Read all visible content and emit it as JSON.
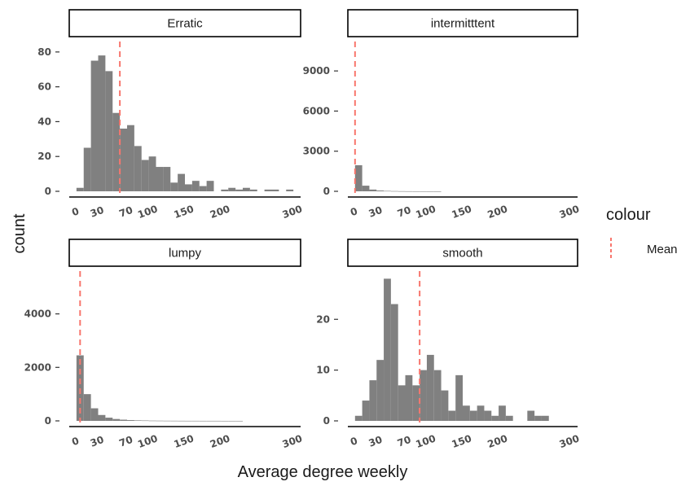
{
  "chart_data": {
    "type": "histogram",
    "xlabel": "Average degree weekly",
    "ylabel": "count",
    "x_tick_labels": [
      "0",
      "30",
      "70",
      "100",
      "150",
      "200",
      "300"
    ],
    "x_tick_values": [
      0,
      30,
      70,
      100,
      150,
      200,
      300
    ],
    "xlim": [
      -10,
      310
    ],
    "bin_width": 10,
    "legend": {
      "title": "colour",
      "entries": [
        {
          "label": "Mean",
          "color": "#f8766d",
          "style": "dashed"
        }
      ]
    },
    "bar_color": "#808080",
    "panels": [
      {
        "strip": "Erratic",
        "ylim": [
          0,
          86
        ],
        "y_ticks": [
          0,
          20,
          40,
          60,
          80
        ],
        "y_tick_labels": [
          "0",
          "20",
          "40",
          "60",
          "80"
        ],
        "mean": 60,
        "bins": [
          {
            "x": 0,
            "count": 2
          },
          {
            "x": 10,
            "count": 25
          },
          {
            "x": 20,
            "count": 75
          },
          {
            "x": 30,
            "count": 78
          },
          {
            "x": 40,
            "count": 69
          },
          {
            "x": 50,
            "count": 45
          },
          {
            "x": 60,
            "count": 36
          },
          {
            "x": 70,
            "count": 38
          },
          {
            "x": 80,
            "count": 26
          },
          {
            "x": 90,
            "count": 18
          },
          {
            "x": 100,
            "count": 20
          },
          {
            "x": 110,
            "count": 14
          },
          {
            "x": 120,
            "count": 14
          },
          {
            "x": 130,
            "count": 5
          },
          {
            "x": 140,
            "count": 10
          },
          {
            "x": 150,
            "count": 4
          },
          {
            "x": 160,
            "count": 6
          },
          {
            "x": 170,
            "count": 3
          },
          {
            "x": 180,
            "count": 6
          },
          {
            "x": 190,
            "count": 0
          },
          {
            "x": 200,
            "count": 1
          },
          {
            "x": 210,
            "count": 2
          },
          {
            "x": 220,
            "count": 1
          },
          {
            "x": 230,
            "count": 2
          },
          {
            "x": 240,
            "count": 1
          },
          {
            "x": 250,
            "count": 0
          },
          {
            "x": 260,
            "count": 1
          },
          {
            "x": 270,
            "count": 1
          },
          {
            "x": 280,
            "count": 0
          },
          {
            "x": 290,
            "count": 1
          }
        ]
      },
      {
        "strip": "intermitttent",
        "ylim": [
          0,
          11200
        ],
        "y_ticks": [
          0,
          3000,
          6000,
          9000
        ],
        "y_tick_labels": [
          "0",
          "3000",
          "6000",
          "9000"
        ],
        "mean": 0,
        "bins": [
          {
            "x": 0,
            "count": 1950
          },
          {
            "x": 10,
            "count": 420
          },
          {
            "x": 20,
            "count": 130
          },
          {
            "x": 30,
            "count": 60
          },
          {
            "x": 40,
            "count": 30
          },
          {
            "x": 50,
            "count": 18
          },
          {
            "x": 60,
            "count": 10
          },
          {
            "x": 70,
            "count": 6
          },
          {
            "x": 80,
            "count": 4
          },
          {
            "x": 90,
            "count": 3
          },
          {
            "x": 100,
            "count": 2
          },
          {
            "x": 110,
            "count": 1
          }
        ]
      },
      {
        "strip": "lumpy",
        "ylim": [
          0,
          5600
        ],
        "y_ticks": [
          0,
          2000,
          4000
        ],
        "y_tick_labels": [
          "0",
          "2000",
          "4000"
        ],
        "mean": 5,
        "bins": [
          {
            "x": 0,
            "count": 2450
          },
          {
            "x": 10,
            "count": 1000
          },
          {
            "x": 20,
            "count": 470
          },
          {
            "x": 30,
            "count": 220
          },
          {
            "x": 40,
            "count": 120
          },
          {
            "x": 50,
            "count": 70
          },
          {
            "x": 60,
            "count": 45
          },
          {
            "x": 70,
            "count": 30
          },
          {
            "x": 80,
            "count": 20
          },
          {
            "x": 90,
            "count": 15
          },
          {
            "x": 100,
            "count": 10
          },
          {
            "x": 110,
            "count": 8
          },
          {
            "x": 120,
            "count": 6
          },
          {
            "x": 130,
            "count": 5
          },
          {
            "x": 140,
            "count": 4
          },
          {
            "x": 150,
            "count": 3
          },
          {
            "x": 160,
            "count": 3
          },
          {
            "x": 170,
            "count": 2
          },
          {
            "x": 180,
            "count": 2
          },
          {
            "x": 190,
            "count": 2
          },
          {
            "x": 200,
            "count": 1
          },
          {
            "x": 210,
            "count": 1
          },
          {
            "x": 220,
            "count": 1
          }
        ]
      },
      {
        "strip": "smooth",
        "ylim": [
          0,
          29.5
        ],
        "y_ticks": [
          0,
          10,
          20
        ],
        "y_tick_labels": [
          "0",
          "10",
          "20"
        ],
        "mean": 90,
        "bins": [
          {
            "x": 0,
            "count": 1
          },
          {
            "x": 10,
            "count": 4
          },
          {
            "x": 20,
            "count": 8
          },
          {
            "x": 30,
            "count": 12
          },
          {
            "x": 40,
            "count": 28
          },
          {
            "x": 50,
            "count": 23
          },
          {
            "x": 60,
            "count": 7
          },
          {
            "x": 70,
            "count": 9
          },
          {
            "x": 80,
            "count": 7
          },
          {
            "x": 90,
            "count": 10
          },
          {
            "x": 100,
            "count": 13
          },
          {
            "x": 110,
            "count": 10
          },
          {
            "x": 120,
            "count": 6
          },
          {
            "x": 130,
            "count": 2
          },
          {
            "x": 140,
            "count": 9
          },
          {
            "x": 150,
            "count": 3
          },
          {
            "x": 160,
            "count": 2
          },
          {
            "x": 170,
            "count": 3
          },
          {
            "x": 180,
            "count": 2
          },
          {
            "x": 190,
            "count": 1
          },
          {
            "x": 200,
            "count": 3
          },
          {
            "x": 210,
            "count": 1
          },
          {
            "x": 220,
            "count": 0
          },
          {
            "x": 230,
            "count": 0
          },
          {
            "x": 240,
            "count": 2
          },
          {
            "x": 250,
            "count": 1
          },
          {
            "x": 260,
            "count": 1
          }
        ]
      }
    ]
  }
}
